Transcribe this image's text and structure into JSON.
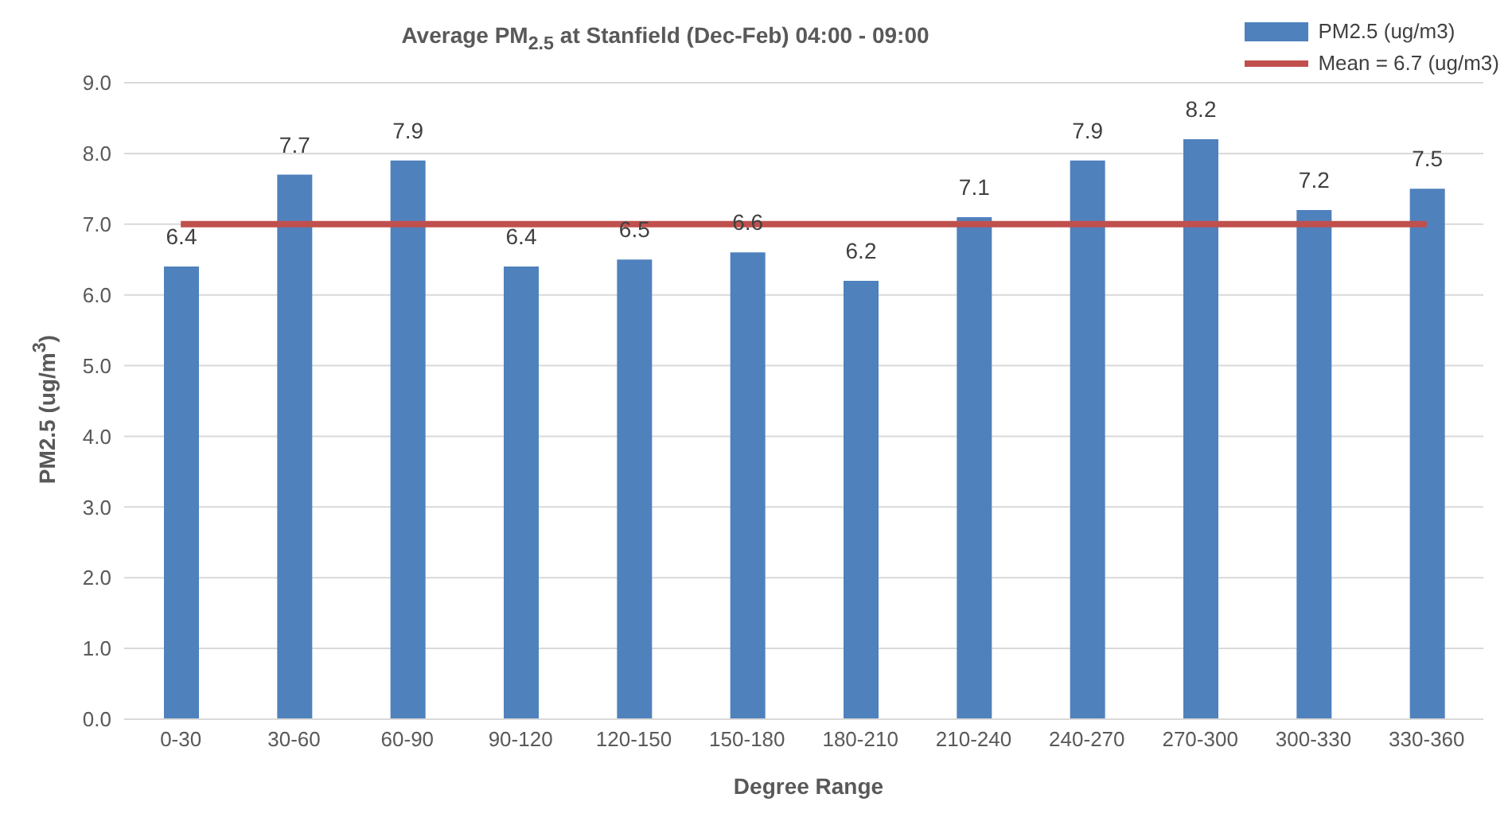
{
  "chart_data": {
    "type": "bar",
    "title": "Average PM$_{2.5}$ at Stanfield (Dec-Feb) 04:00 - 09:00",
    "xlabel": "Degree Range",
    "ylabel": "PM2.5 (ug/m$^{3}$)",
    "categories": [
      "0-30",
      "30-60",
      "60-90",
      "90-120",
      "120-150",
      "150-180",
      "180-210",
      "210-240",
      "240-270",
      "270-300",
      "300-330",
      "330-360"
    ],
    "series": [
      {
        "name": "PM2.5 (ug/m3)",
        "color": "#4f81bd",
        "values": [
          6.4,
          7.7,
          7.9,
          6.4,
          6.5,
          6.6,
          6.2,
          7.1,
          7.9,
          8.2,
          7.2,
          7.5
        ],
        "value_labels": [
          "6.4",
          "7.7",
          "7.9",
          "6.4",
          "6.5",
          "6.6",
          "6.2",
          "7.1",
          "7.9",
          "8.2",
          "7.2",
          "7.5"
        ]
      },
      {
        "name": "Mean = 6.7 (ug/m3)",
        "type": "line",
        "color": "#c0504d",
        "values": [
          7.0,
          7.0,
          7.0,
          7.0,
          7.0,
          7.0,
          7.0,
          7.0,
          7.0,
          7.0,
          7.0,
          7.0
        ]
      }
    ],
    "ylim": [
      0,
      9
    ],
    "yticks": [
      {
        "value": 0,
        "label": "0.0"
      },
      {
        "value": 1,
        "label": "1.0"
      },
      {
        "value": 2,
        "label": "2.0"
      },
      {
        "value": 3,
        "label": "3.0"
      },
      {
        "value": 4,
        "label": "4.0"
      },
      {
        "value": 5,
        "label": "5.0"
      },
      {
        "value": 6,
        "label": "6.0"
      },
      {
        "value": 7,
        "label": "7.0"
      },
      {
        "value": 8,
        "label": "8.0"
      },
      {
        "value": 9,
        "label": "9.0"
      }
    ],
    "grid": "y",
    "legend": "top right"
  }
}
